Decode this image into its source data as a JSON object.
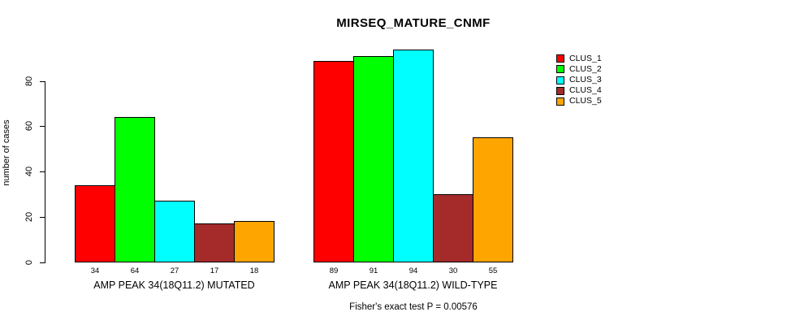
{
  "chart_data": {
    "type": "bar",
    "title": "MIRSEQ_MATURE_CNMF",
    "ylabel": "number of cases",
    "xlabel": "",
    "categories": [
      "AMP PEAK 34(18Q11.2) MUTATED",
      "AMP PEAK 34(18Q11.2) WILD-TYPE"
    ],
    "series": [
      {
        "name": "CLUS_1",
        "color": "#FF0000",
        "values": [
          34,
          89
        ]
      },
      {
        "name": "CLUS_2",
        "color": "#00FF00",
        "values": [
          64,
          91
        ]
      },
      {
        "name": "CLUS_3",
        "color": "#00FFFF",
        "values": [
          27,
          94
        ]
      },
      {
        "name": "CLUS_4",
        "color": "#A52A2A",
        "values": [
          17,
          30
        ]
      },
      {
        "name": "CLUS_5",
        "color": "#FFA500",
        "values": [
          18,
          55
        ]
      }
    ],
    "yticks": [
      0,
      20,
      40,
      60,
      80
    ],
    "ylim": [
      0,
      97
    ],
    "grid": false,
    "bar_value_labels": true,
    "legend_position": "right",
    "legend_labels": [
      "CLUS_1",
      "CLUS_2",
      "CLUS_3",
      "CLUS_4",
      "CLUS_5"
    ],
    "annotation": "Fisher's exact test P = 0.00576"
  }
}
